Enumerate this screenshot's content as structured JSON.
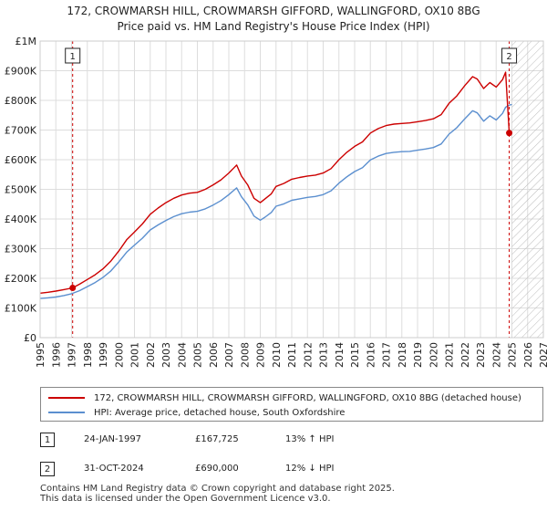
{
  "chart_data": {
    "type": "line",
    "title": "172, CROWMARSH HILL, CROWMARSH GIFFORD, WALLINGFORD, OX10 8BG",
    "subtitle": "Price paid vs. HM Land Registry's House Price Index (HPI)",
    "xlabel": "",
    "ylabel": "",
    "xlim": [
      1995,
      2027
    ],
    "ylim": [
      0,
      1000000
    ],
    "x_ticks": [
      "1995",
      "1996",
      "1997",
      "1998",
      "1999",
      "2000",
      "2001",
      "2002",
      "2003",
      "2004",
      "2005",
      "2006",
      "2007",
      "2008",
      "2009",
      "2010",
      "2011",
      "2012",
      "2013",
      "2014",
      "2015",
      "2016",
      "2017",
      "2018",
      "2019",
      "2020",
      "2021",
      "2022",
      "2023",
      "2024",
      "2025",
      "2026",
      "2027"
    ],
    "y_ticks": [
      {
        "value": 0,
        "label": "£0"
      },
      {
        "value": 100000,
        "label": "£100K"
      },
      {
        "value": 200000,
        "label": "£200K"
      },
      {
        "value": 300000,
        "label": "£300K"
      },
      {
        "value": 400000,
        "label": "£400K"
      },
      {
        "value": 500000,
        "label": "£500K"
      },
      {
        "value": 600000,
        "label": "£600K"
      },
      {
        "value": 700000,
        "label": "£700K"
      },
      {
        "value": 800000,
        "label": "£800K"
      },
      {
        "value": 900000,
        "label": "£900K"
      },
      {
        "value": 1000000,
        "label": "£1M"
      }
    ],
    "grid": true,
    "hatch_from": 2025.0,
    "series": [
      {
        "name": "172, CROWMARSH HILL, CROWMARSH GIFFORD, WALLINGFORD, OX10 8BG (detached house)",
        "color": "#cc0000",
        "x": [
          1995.0,
          1995.5,
          1996.0,
          1996.5,
          1997.07,
          1997.5,
          1998.0,
          1998.5,
          1999.0,
          1999.5,
          2000.0,
          2000.5,
          2001.0,
          2001.5,
          2002.0,
          2002.5,
          2003.0,
          2003.5,
          2004.0,
          2004.5,
          2005.0,
          2005.5,
          2006.0,
          2006.5,
          2007.0,
          2007.5,
          2007.8,
          2008.2,
          2008.6,
          2009.0,
          2009.3,
          2009.7,
          2010.0,
          2010.5,
          2011.0,
          2011.5,
          2012.0,
          2012.5,
          2013.0,
          2013.5,
          2014.0,
          2014.5,
          2015.0,
          2015.5,
          2016.0,
          2016.5,
          2017.0,
          2017.5,
          2018.0,
          2018.5,
          2019.0,
          2019.5,
          2020.0,
          2020.5,
          2021.0,
          2021.5,
          2022.0,
          2022.5,
          2022.8,
          2023.2,
          2023.6,
          2024.0,
          2024.4,
          2024.6,
          2024.83
        ],
        "y": [
          150000,
          153000,
          157000,
          162000,
          167725,
          180000,
          196000,
          212000,
          232000,
          258000,
          292000,
          330000,
          356000,
          383000,
          416000,
          437000,
          455000,
          470000,
          481000,
          487000,
          490000,
          500000,
          515000,
          532000,
          555000,
          582000,
          545000,
          515000,
          470000,
          455000,
          468000,
          485000,
          510000,
          520000,
          534000,
          540000,
          545000,
          548000,
          555000,
          570000,
          600000,
          625000,
          645000,
          660000,
          690000,
          705000,
          715000,
          720000,
          722000,
          724000,
          728000,
          732000,
          738000,
          752000,
          790000,
          815000,
          850000,
          880000,
          872000,
          840000,
          860000,
          845000,
          870000,
          895000,
          690000
        ]
      },
      {
        "name": "HPI: Average price, detached house, South Oxfordshire",
        "color": "#5b8fcf",
        "x": [
          1995.0,
          1995.5,
          1996.0,
          1996.5,
          1997.0,
          1997.5,
          1998.0,
          1998.5,
          1999.0,
          1999.5,
          2000.0,
          2000.5,
          2001.0,
          2001.5,
          2002.0,
          2002.5,
          2003.0,
          2003.5,
          2004.0,
          2004.5,
          2005.0,
          2005.5,
          2006.0,
          2006.5,
          2007.0,
          2007.5,
          2007.8,
          2008.2,
          2008.6,
          2009.0,
          2009.3,
          2009.7,
          2010.0,
          2010.5,
          2011.0,
          2011.5,
          2012.0,
          2012.5,
          2013.0,
          2013.5,
          2014.0,
          2014.5,
          2015.0,
          2015.5,
          2016.0,
          2016.5,
          2017.0,
          2017.5,
          2018.0,
          2018.5,
          2019.0,
          2019.5,
          2020.0,
          2020.5,
          2021.0,
          2021.5,
          2022.0,
          2022.5,
          2022.8,
          2023.2,
          2023.6,
          2024.0,
          2024.4,
          2024.6,
          2024.83,
          2025.0
        ],
        "y": [
          132000,
          134000,
          137000,
          142000,
          148000,
          158000,
          172000,
          186000,
          203000,
          225000,
          255000,
          288000,
          312000,
          335000,
          363000,
          380000,
          395000,
          408000,
          418000,
          423000,
          426000,
          434000,
          447000,
          462000,
          482000,
          505000,
          475000,
          448000,
          410000,
          396000,
          406000,
          422000,
          443000,
          451000,
          463000,
          468000,
          473000,
          476000,
          482000,
          495000,
          521000,
          542000,
          560000,
          573000,
          599000,
          612000,
          621000,
          625000,
          627000,
          628000,
          632000,
          636000,
          641000,
          653000,
          686000,
          708000,
          738000,
          765000,
          758000,
          730000,
          748000,
          734000,
          756000,
          777000,
          784000,
          786000
        ]
      }
    ],
    "markers": [
      {
        "label": "1",
        "x": 1997.07,
        "y": 167725
      },
      {
        "label": "2",
        "x": 2024.83,
        "y": 690000
      }
    ]
  },
  "legend": {
    "items": [
      {
        "label": "172, CROWMARSH HILL, CROWMARSH GIFFORD, WALLINGFORD, OX10 8BG (detached house)",
        "color": "#cc0000"
      },
      {
        "label": "HPI: Average price, detached house, South Oxfordshire",
        "color": "#5b8fcf"
      }
    ]
  },
  "sales": [
    {
      "num": "1",
      "date": "24-JAN-1997",
      "price": "£167,725",
      "hpi": "13% ↑ HPI"
    },
    {
      "num": "2",
      "date": "31-OCT-2024",
      "price": "£690,000",
      "hpi": "12% ↓ HPI"
    }
  ],
  "footer": {
    "line1": "Contains HM Land Registry data © Crown copyright and database right 2025.",
    "line2": "This data is licensed under the Open Government Licence v3.0."
  }
}
